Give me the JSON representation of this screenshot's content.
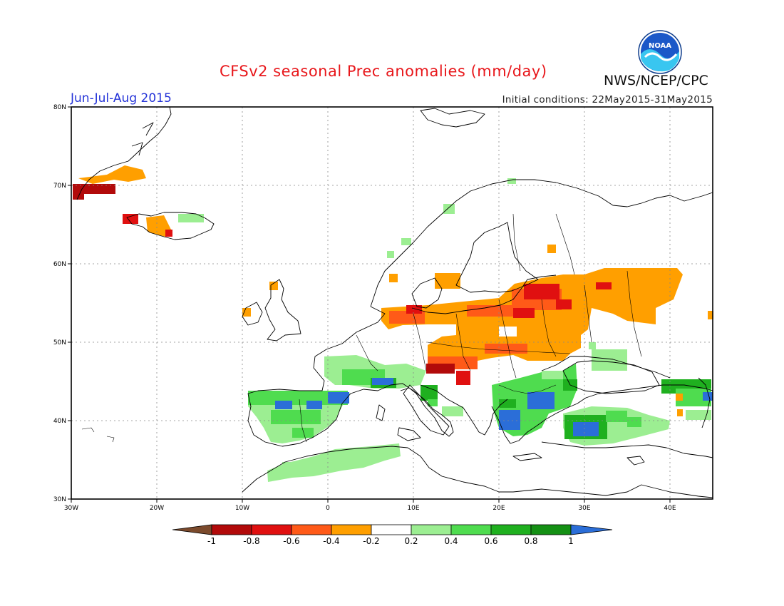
{
  "header": {
    "title": "CFSv2 seasonal Prec anomalies (mm/day)",
    "organization": "NWS/NCEP/CPC",
    "period": "Jun-Jul-Aug 2015",
    "initial_conditions": "Initial conditions: 22May2015-31May2015",
    "logo_text": "NOAA"
  },
  "axes": {
    "lat_labels": [
      "80N",
      "70N",
      "60N",
      "50N",
      "40N",
      "30N"
    ],
    "lon_labels": [
      "30W",
      "20W",
      "10W",
      "0",
      "10E",
      "20E",
      "30E",
      "40E"
    ]
  },
  "colorbar": {
    "colors": [
      "#7b4a2c",
      "#b20a0a",
      "#e01010",
      "#ff5a18",
      "#ff9f00",
      "#ffffff",
      "#9cee92",
      "#4fdc4f",
      "#1fb01f",
      "#149014",
      "#2b6ed8"
    ],
    "tick_labels": [
      "-1",
      "-0.8",
      "-0.6",
      "-0.4",
      "-0.2",
      "0.2",
      "0.4",
      "0.6",
      "0.8",
      "1"
    ]
  },
  "map_data": {
    "units": "mm/day",
    "domain": {
      "lon": [
        -30,
        45
      ],
      "lat": [
        30,
        80
      ]
    },
    "anomaly_regions": [
      {
        "region": "Southern Greenland coast",
        "class": "-0.4"
      },
      {
        "region": "Southeast Greenland tip",
        "class": "-0.8"
      },
      {
        "region": "Western Iceland",
        "class": "-0.6"
      },
      {
        "region": "Southern Iceland",
        "class": "-0.4"
      },
      {
        "region": "Eastern Iceland",
        "class": "0.4"
      },
      {
        "region": "Southern Norway",
        "class": "-0.4"
      },
      {
        "region": "Northern Germany / Denmark",
        "class": "-0.6"
      },
      {
        "region": "Central Europe (Germany, Poland)",
        "class": "-0.4"
      },
      {
        "region": "Baltic states / Belarus",
        "class": "-0.8"
      },
      {
        "region": "Western Russia",
        "class": "-0.4"
      },
      {
        "region": "Ukraine",
        "class": "-0.4"
      },
      {
        "region": "Northern Italy / Slovenia / Croatia",
        "class": "-0.8"
      },
      {
        "region": "France",
        "class": "0.4"
      },
      {
        "region": "Southern France / Pyrenees",
        "class": "0.8"
      },
      {
        "region": "Iberian Peninsula",
        "class": "0.4"
      },
      {
        "region": "Northern Spain",
        "class": "1"
      },
      {
        "region": "Northwest Africa",
        "class": "0.4"
      },
      {
        "region": "Greece / Albania",
        "class": "1"
      },
      {
        "region": "Bulgaria / Romania",
        "class": "1"
      },
      {
        "region": "Western Turkey",
        "class": "1"
      },
      {
        "region": "Caucasus",
        "class": "0.6"
      },
      {
        "region": "Northern Scandinavia",
        "class": "0.4"
      }
    ]
  }
}
